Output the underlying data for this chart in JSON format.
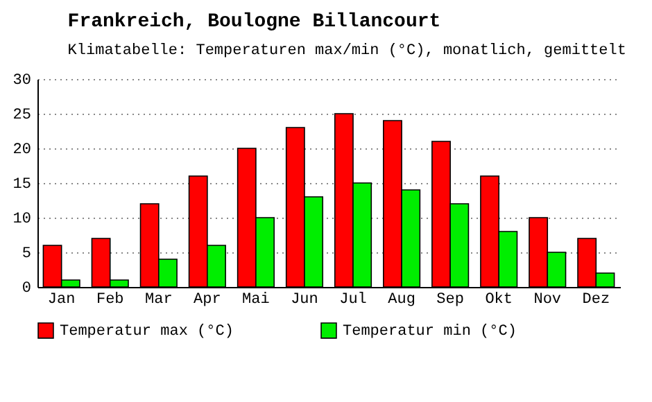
{
  "chart_data": {
    "type": "bar",
    "title": "Frankreich, Boulogne Billancourt",
    "subtitle": "Klimatabelle: Temperaturen max/min (°C), monatlich, gemittelt",
    "categories": [
      "Jan",
      "Feb",
      "Mar",
      "Apr",
      "Mai",
      "Jun",
      "Jul",
      "Aug",
      "Sep",
      "Okt",
      "Nov",
      "Dez"
    ],
    "series": [
      {
        "name": "Temperatur max (°C)",
        "color": "#ff0000",
        "values": [
          6,
          7,
          12,
          16,
          20,
          23,
          25,
          24,
          21,
          16,
          10,
          7
        ]
      },
      {
        "name": "Temperatur min (°C)",
        "color": "#00ee00",
        "values": [
          1,
          1,
          4,
          6,
          10,
          13,
          15,
          14,
          12,
          8,
          5,
          2
        ]
      }
    ],
    "ylim": [
      0,
      30
    ],
    "yticks": [
      0,
      5,
      10,
      15,
      20,
      25,
      30
    ],
    "grid": "y",
    "legend": "bottom"
  }
}
